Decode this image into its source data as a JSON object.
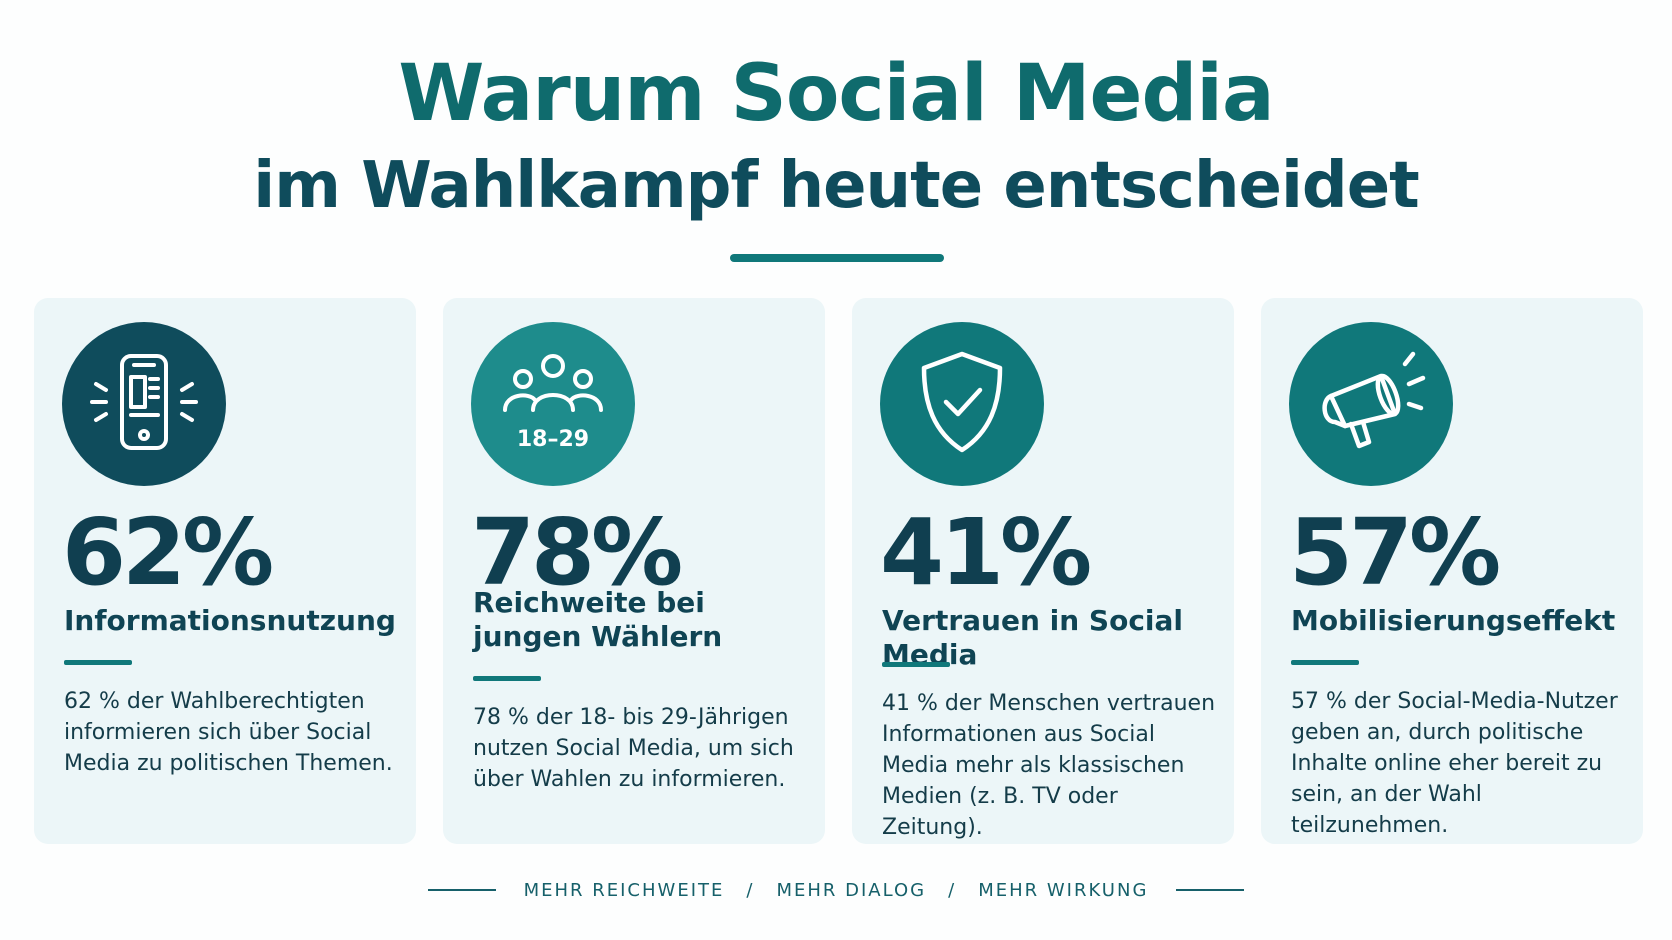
{
  "header": {
    "title_line1": "Warum Social Media",
    "title_line2": "im Wahlkampf heute entscheidet"
  },
  "colors": {
    "dark_teal": "#0f4c5c",
    "teal": "#10787a",
    "light_teal": "#1e8c8c",
    "card_background": "#ecf6f8"
  },
  "cards": [
    {
      "icon": "smartphone-news-icon",
      "percent": "62%",
      "title": "Informationsnutzung",
      "text": "62 % der Wahlberechtigten informieren sich über Social Media zu politischen Themen."
    },
    {
      "icon": "people-group-icon",
      "icon_label": "18–29",
      "percent": "78%",
      "title": "Reichweite bei jungen Wählern",
      "text": "78 % der 18- bis 29-Jährigen nutzen Social Media, um sich über Wahlen zu informieren."
    },
    {
      "icon": "shield-check-icon",
      "percent": "41%",
      "title": "Vertrauen in Social Media",
      "text": "41 % der Menschen vertrauen Informationen aus Social Media mehr als klassischen Medien (z. B. TV oder Zeitung)."
    },
    {
      "icon": "megaphone-icon",
      "percent": "57%",
      "title": "Mobilisierungseffekt",
      "text": "57 % der Social-Media-Nutzer geben an, durch politische Inhalte online eher bereit zu sein, an der Wahl teilzunehmen."
    }
  ],
  "footer": {
    "item1": "MEHR REICHWEITE",
    "separator": "/",
    "item2": "MEHR DIALOG",
    "item3": "MEHR WIRKUNG"
  }
}
